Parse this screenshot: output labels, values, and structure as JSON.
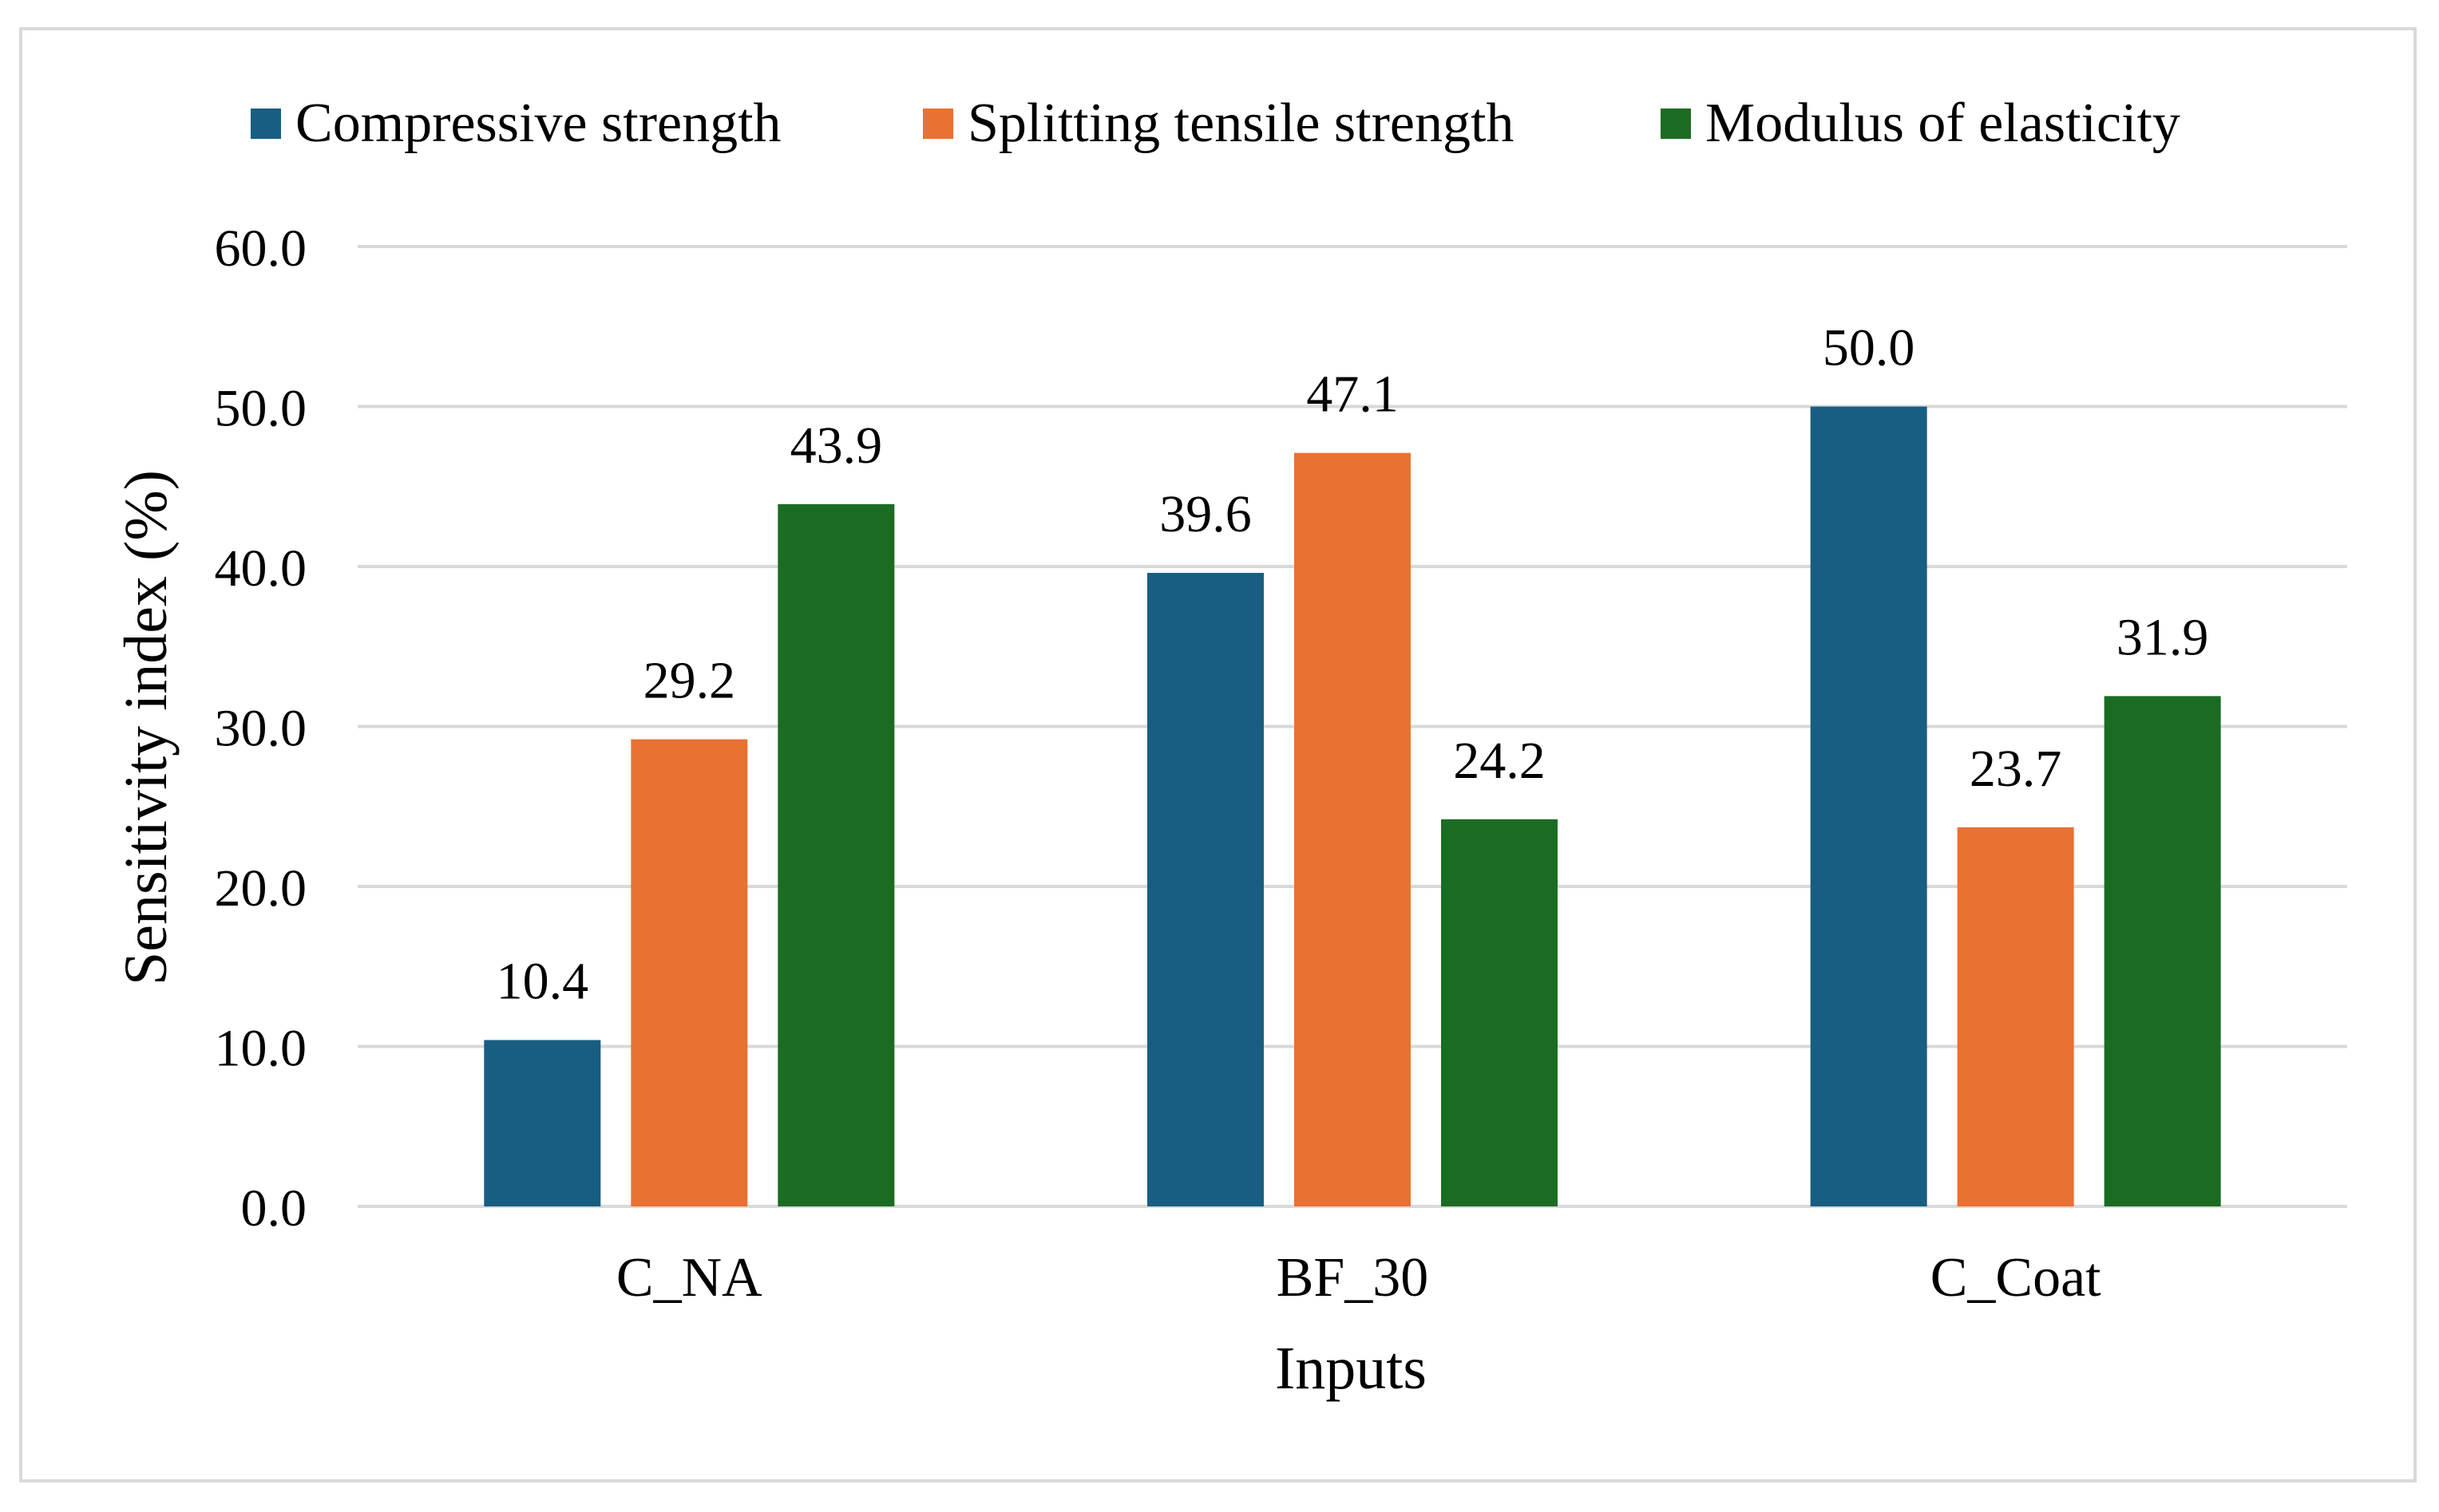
{
  "chart_data": {
    "type": "bar",
    "categories": [
      "C_NA",
      "BF_30",
      "C_Coat"
    ],
    "series": [
      {
        "name": "Compressive strength",
        "values": [
          10.4,
          39.6,
          50.0
        ],
        "color": "#175E82"
      },
      {
        "name": "Splitting tensile strength",
        "values": [
          29.2,
          47.1,
          23.7
        ],
        "color": "#E97132"
      },
      {
        "name": "Modulus of elasticity",
        "values": [
          43.9,
          24.2,
          31.9
        ],
        "color": "#1B6C23"
      }
    ],
    "data_labels": [
      [
        "10.4",
        "39.6",
        "50.0"
      ],
      [
        "29.2",
        "47.1",
        "23.7"
      ],
      [
        "43.9",
        "24.2",
        "31.9"
      ]
    ],
    "xlabel": "Inputs",
    "ylabel": "Sensitivity index (%)",
    "ylim": [
      0,
      60
    ],
    "yticks": [
      "0.0",
      "10.0",
      "20.0",
      "30.0",
      "40.0",
      "50.0",
      "60.0"
    ],
    "grid": true,
    "legend_position": "top"
  }
}
